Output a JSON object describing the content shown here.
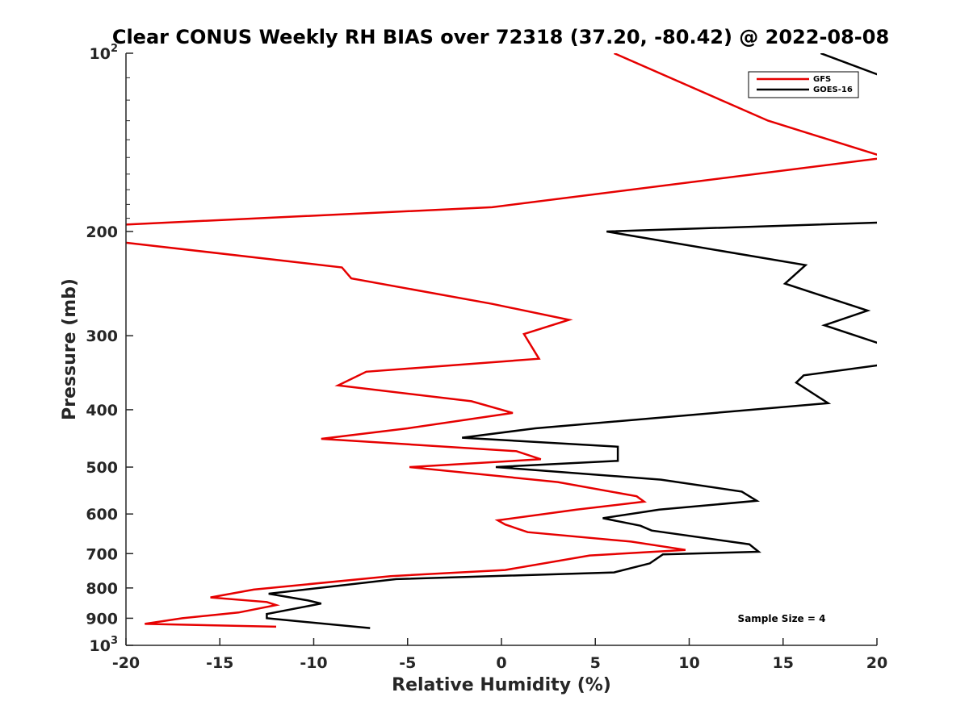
{
  "chart_data": {
    "type": "line",
    "title": "Clear CONUS Weekly RH BIAS over 72318 (37.20, -80.42) @ 2022-08-08",
    "xlabel": "Relative Humidity (%)",
    "ylabel": "Pressure (mb)",
    "xlim": [
      -20,
      20
    ],
    "ylim": [
      100,
      1000
    ],
    "yscale": "log",
    "y_reversed": true,
    "grid": false,
    "legend_position": "top-right",
    "x_ticks": [
      "-20",
      "-15",
      "-10",
      "-5",
      "0",
      "5",
      "10",
      "15",
      "20"
    ],
    "y_ticks": [
      {
        "value": 100,
        "base": "10",
        "exp": "2"
      },
      {
        "value": 200,
        "label": "200"
      },
      {
        "value": 300,
        "label": "300"
      },
      {
        "value": 400,
        "label": "400"
      },
      {
        "value": 500,
        "label": "500"
      },
      {
        "value": 600,
        "label": "600"
      },
      {
        "value": 700,
        "label": "700"
      },
      {
        "value": 800,
        "label": "800"
      },
      {
        "value": 900,
        "label": "900"
      },
      {
        "value": 1000,
        "base": "10",
        "exp": "3"
      }
    ],
    "series": [
      {
        "name": "GFS",
        "color": "#e60000",
        "points": [
          [
            6.0,
            100
          ],
          [
            14.2,
            130
          ],
          [
            20.5,
            150
          ],
          [
            -0.5,
            182
          ],
          [
            -20.5,
            195
          ],
          [
            -20.5,
            208
          ],
          [
            -8.5,
            230
          ],
          [
            -8.0,
            240
          ],
          [
            -0.5,
            265
          ],
          [
            3.6,
            282
          ],
          [
            1.2,
            298
          ],
          [
            2.0,
            328
          ],
          [
            -7.2,
            345
          ],
          [
            -8.7,
            364
          ],
          [
            -1.6,
            387
          ],
          [
            0.6,
            405
          ],
          [
            -5.0,
            430
          ],
          [
            -9.6,
            448
          ],
          [
            0.8,
            470
          ],
          [
            2.1,
            485
          ],
          [
            -4.9,
            500
          ],
          [
            3.0,
            530
          ],
          [
            7.2,
            560
          ],
          [
            7.6,
            572
          ],
          [
            4.0,
            590
          ],
          [
            -0.2,
            615
          ],
          [
            0.2,
            625
          ],
          [
            1.4,
            644
          ],
          [
            6.9,
            668
          ],
          [
            9.8,
            690
          ],
          [
            4.7,
            705
          ],
          [
            0.2,
            746
          ],
          [
            -5.9,
            764
          ],
          [
            -13.2,
            805
          ],
          [
            -15.5,
            830
          ],
          [
            -12.5,
            845
          ],
          [
            -12.0,
            855
          ],
          [
            -14.0,
            880
          ],
          [
            -17.0,
            900
          ],
          [
            -19.0,
            920
          ],
          [
            -12.0,
            930
          ]
        ]
      },
      {
        "name": "GOES-16",
        "color": "#000000",
        "points": [
          [
            17.0,
            100
          ],
          [
            20.5,
            110
          ],
          [
            null,
            null
          ],
          [
            20.5,
            193
          ],
          [
            5.6,
            200
          ],
          [
            16.2,
            228
          ],
          [
            15.1,
            245
          ],
          [
            19.5,
            272
          ],
          [
            17.2,
            288
          ],
          [
            20.5,
            312
          ],
          [
            null,
            null
          ],
          [
            20.5,
            335
          ],
          [
            16.1,
            350
          ],
          [
            15.7,
            360
          ],
          [
            17.4,
            390
          ],
          [
            1.8,
            430
          ],
          [
            -2.1,
            446
          ],
          [
            6.2,
            462
          ],
          [
            6.2,
            488
          ],
          [
            -0.3,
            500
          ],
          [
            8.5,
            525
          ],
          [
            12.8,
            550
          ],
          [
            13.6,
            570
          ],
          [
            8.4,
            590
          ],
          [
            5.4,
            610
          ],
          [
            7.4,
            628
          ],
          [
            8.0,
            640
          ],
          [
            13.2,
            675
          ],
          [
            13.7,
            695
          ],
          [
            8.6,
            702
          ],
          [
            7.9,
            727
          ],
          [
            6.0,
            753
          ],
          [
            -5.6,
            773
          ],
          [
            -12.4,
            818
          ],
          [
            -10.3,
            840
          ],
          [
            -9.6,
            850
          ],
          [
            -12.5,
            885
          ],
          [
            -12.5,
            900
          ],
          [
            -7.0,
            935
          ]
        ]
      }
    ],
    "annotations": [
      "Sample Size = 4"
    ]
  },
  "legend": {
    "gfs_label": "GFS",
    "goes_label": "GOES-16"
  }
}
